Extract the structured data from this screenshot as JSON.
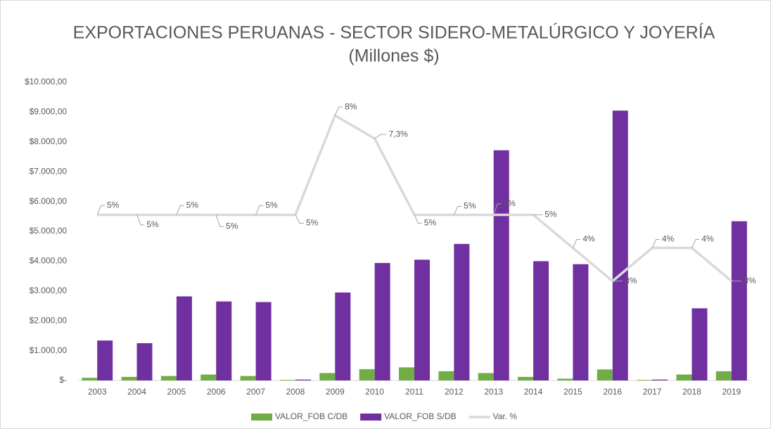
{
  "chart_data": {
    "type": "bar",
    "title": "EXPORTACIONES PERUANAS - SECTOR SIDERO-METALÚRGICO Y JOYERÍA",
    "subtitle": "(Millones $)",
    "categories": [
      "2003",
      "2004",
      "2005",
      "2006",
      "2007",
      "2008",
      "2009",
      "2010",
      "2011",
      "2012",
      "2013",
      "2014",
      "2015",
      "2016",
      "2017",
      "2018",
      "2019"
    ],
    "series": [
      {
        "name": "VALOR_FOB C/DB",
        "type": "bar",
        "color": "#70ad47",
        "values": [
          90,
          120,
          150,
          200,
          150,
          20,
          250,
          380,
          440,
          310,
          250,
          120,
          60,
          370,
          20,
          200,
          310
        ]
      },
      {
        "name": "VALOR_FOB S/DB",
        "type": "bar",
        "color": "#7030a0",
        "values": [
          1340,
          1250,
          2820,
          2650,
          2630,
          30,
          2950,
          3940,
          4050,
          4580,
          7720,
          4000,
          3900,
          9050,
          30,
          2420,
          5340
        ]
      },
      {
        "name": "Var. %",
        "type": "line",
        "color": "#d9d9d9",
        "axis": "y2",
        "values": [
          5,
          5,
          5,
          5,
          5,
          5,
          8,
          7.3,
          5,
          5,
          5,
          5,
          4,
          3,
          4,
          4,
          3
        ],
        "value_labels": [
          "5%",
          "5%",
          "5%",
          "5%",
          "5%",
          "5%",
          "8%",
          "7,3%",
          "5%",
          "5%",
          "5%",
          "5%",
          "4%",
          "3%",
          "4%",
          "4%",
          "3%"
        ]
      }
    ],
    "ylim": [
      0,
      10000
    ],
    "yticks": [
      {
        "value": 0,
        "label": "$-"
      },
      {
        "value": 1000,
        "label": "$1.000,00"
      },
      {
        "value": 2000,
        "label": "$2.000,00"
      },
      {
        "value": 3000,
        "label": "$3.000,00"
      },
      {
        "value": 4000,
        "label": "$4.000,00"
      },
      {
        "value": 5000,
        "label": "$5.000,00"
      },
      {
        "value": 6000,
        "label": "$6.000,00"
      },
      {
        "value": 7000,
        "label": "$7.000,00"
      },
      {
        "value": 8000,
        "label": "$8.000,00"
      },
      {
        "value": 9000,
        "label": "$9.000,00"
      },
      {
        "value": 10000,
        "label": "$10.000,00"
      }
    ],
    "y2lim": [
      0,
      9
    ],
    "grid": false,
    "legend": "bottom"
  }
}
